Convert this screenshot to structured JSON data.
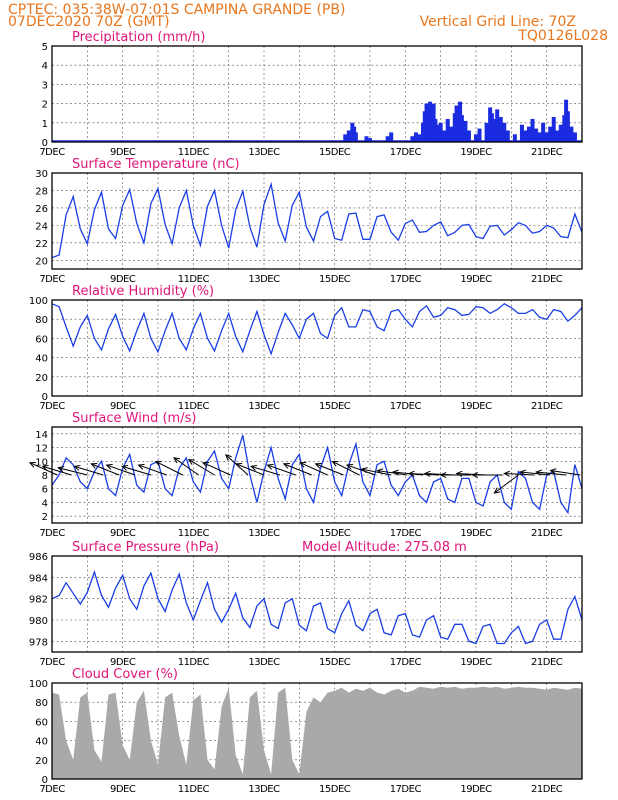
{
  "header": {
    "line1": "CPTEC:   035:38W-07:01S   CAMPINA GRANDE (PB)",
    "line2_left": "07DEC2020 70Z (GMT)",
    "line2_right": "Vertical Grid Line: 70Z",
    "line3_right": "TQ0126L028"
  },
  "colors": {
    "header": "#e8761e",
    "title": "#e0157a",
    "series": "#1a3ee6",
    "cloud": "#a9a9a9",
    "precip": "#1a2be0"
  },
  "x_ticks": [
    "7DEC",
    "9DEC",
    "11DEC",
    "13DEC",
    "15DEC",
    "17DEC",
    "19DEC",
    "21DEC"
  ],
  "chart_data": [
    {
      "id": "precip",
      "type": "bar",
      "title": "Precipitation (mm/h)",
      "ylim": [
        0,
        5
      ],
      "yticks": [
        0,
        1,
        2,
        3,
        4,
        5
      ],
      "x_range_days": [
        7,
        22
      ],
      "events": [
        {
          "day": 15.3,
          "value": 0.4
        },
        {
          "day": 15.4,
          "value": 0.6
        },
        {
          "day": 15.5,
          "value": 1.0
        },
        {
          "day": 15.55,
          "value": 0.8
        },
        {
          "day": 15.6,
          "value": 0.5
        },
        {
          "day": 15.9,
          "value": 0.3
        },
        {
          "day": 16.0,
          "value": 0.2
        },
        {
          "day": 16.5,
          "value": 0.3
        },
        {
          "day": 16.6,
          "value": 0.5
        },
        {
          "day": 17.2,
          "value": 0.3
        },
        {
          "day": 17.3,
          "value": 0.5
        },
        {
          "day": 17.4,
          "value": 0.4
        },
        {
          "day": 17.5,
          "value": 1.0
        },
        {
          "day": 17.55,
          "value": 1.6
        },
        {
          "day": 17.6,
          "value": 2.0
        },
        {
          "day": 17.65,
          "value": 1.8
        },
        {
          "day": 17.7,
          "value": 2.1
        },
        {
          "day": 17.75,
          "value": 1.5
        },
        {
          "day": 17.8,
          "value": 2.0
        },
        {
          "day": 17.85,
          "value": 1.2
        },
        {
          "day": 17.9,
          "value": 0.9
        },
        {
          "day": 18.0,
          "value": 1.0
        },
        {
          "day": 18.1,
          "value": 0.6
        },
        {
          "day": 18.2,
          "value": 1.2
        },
        {
          "day": 18.3,
          "value": 0.8
        },
        {
          "day": 18.4,
          "value": 1.5
        },
        {
          "day": 18.45,
          "value": 1.9
        },
        {
          "day": 18.5,
          "value": 1.6
        },
        {
          "day": 18.55,
          "value": 2.1
        },
        {
          "day": 18.6,
          "value": 1.4
        },
        {
          "day": 18.7,
          "value": 1.1
        },
        {
          "day": 18.8,
          "value": 0.6
        },
        {
          "day": 19.0,
          "value": 0.4
        },
        {
          "day": 19.1,
          "value": 0.7
        },
        {
          "day": 19.3,
          "value": 1.0
        },
        {
          "day": 19.4,
          "value": 1.8
        },
        {
          "day": 19.45,
          "value": 1.5
        },
        {
          "day": 19.5,
          "value": 1.2
        },
        {
          "day": 19.6,
          "value": 1.7
        },
        {
          "day": 19.7,
          "value": 1.3
        },
        {
          "day": 19.8,
          "value": 1.0
        },
        {
          "day": 19.9,
          "value": 0.6
        },
        {
          "day": 20.1,
          "value": 0.4
        },
        {
          "day": 20.3,
          "value": 0.9
        },
        {
          "day": 20.4,
          "value": 0.6
        },
        {
          "day": 20.5,
          "value": 0.8
        },
        {
          "day": 20.6,
          "value": 1.2
        },
        {
          "day": 20.7,
          "value": 0.7
        },
        {
          "day": 20.8,
          "value": 0.5
        },
        {
          "day": 20.9,
          "value": 1.0
        },
        {
          "day": 21.0,
          "value": 0.5
        },
        {
          "day": 21.1,
          "value": 0.8
        },
        {
          "day": 21.2,
          "value": 1.3
        },
        {
          "day": 21.3,
          "value": 0.6
        },
        {
          "day": 21.4,
          "value": 0.9
        },
        {
          "day": 21.5,
          "value": 1.4
        },
        {
          "day": 21.55,
          "value": 2.2
        },
        {
          "day": 21.6,
          "value": 1.6
        },
        {
          "day": 21.7,
          "value": 0.8
        },
        {
          "day": 21.8,
          "value": 0.5
        }
      ]
    },
    {
      "id": "temp",
      "type": "line",
      "title": "Surface Temperature (nC)",
      "ylim": [
        19,
        30
      ],
      "yticks": [
        20,
        22,
        24,
        26,
        28,
        30
      ],
      "x_range_days": [
        7,
        22
      ],
      "x_days": [
        7.0,
        7.2,
        7.4,
        7.6,
        7.8,
        8.0,
        8.2,
        8.4,
        8.6,
        8.8,
        9.0,
        9.2,
        9.4,
        9.6,
        9.8,
        10.0,
        10.2,
        10.4,
        10.6,
        10.8,
        11.0,
        11.2,
        11.4,
        11.6,
        11.8,
        12.0,
        12.2,
        12.4,
        12.6,
        12.8,
        13.0,
        13.2,
        13.4,
        13.6,
        13.8,
        14.0,
        14.2,
        14.4,
        14.6,
        14.8,
        15.0,
        15.2,
        15.4,
        15.6,
        15.8,
        16.0,
        16.2,
        16.4,
        16.6,
        16.8,
        17.0,
        17.2,
        17.4,
        17.6,
        17.8,
        18.0,
        18.2,
        18.4,
        18.6,
        18.8,
        19.0,
        19.2,
        19.4,
        19.6,
        19.8,
        20.0,
        20.2,
        20.4,
        20.6,
        20.8,
        21.0,
        21.2,
        21.4,
        21.6,
        21.8,
        22.0
      ],
      "values": [
        20.3,
        20.6,
        25.2,
        27.3,
        23.6,
        21.9,
        25.8,
        27.8,
        23.6,
        22.5,
        26.3,
        28.1,
        24.2,
        22.0,
        26.5,
        28.2,
        24.1,
        21.9,
        26.0,
        28.0,
        24.0,
        21.7,
        26.2,
        28.0,
        24.0,
        21.4,
        25.8,
        27.9,
        23.8,
        21.5,
        26.4,
        28.7,
        24.3,
        22.2,
        26.3,
        27.8,
        23.8,
        22.2,
        25.0,
        25.6,
        22.5,
        22.3,
        25.3,
        25.4,
        22.4,
        22.4,
        25.0,
        25.2,
        23.2,
        22.3,
        24.2,
        24.6,
        23.2,
        23.3,
        24.0,
        24.4,
        22.8,
        23.2,
        24.0,
        24.1,
        22.7,
        22.5,
        23.9,
        24.0,
        22.9,
        23.5,
        24.3,
        24.0,
        23.1,
        23.3,
        24.0,
        23.7,
        22.7,
        22.6,
        25.3,
        23.2
      ]
    },
    {
      "id": "rh",
      "type": "line",
      "title": "Relative Humidity (%)",
      "ylim": [
        0,
        100
      ],
      "yticks": [
        0,
        20,
        40,
        60,
        80,
        100
      ],
      "x_range_days": [
        7,
        22
      ],
      "x_days": [
        7.0,
        7.2,
        7.4,
        7.6,
        7.8,
        8.0,
        8.2,
        8.4,
        8.6,
        8.8,
        9.0,
        9.2,
        9.4,
        9.6,
        9.8,
        10.0,
        10.2,
        10.4,
        10.6,
        10.8,
        11.0,
        11.2,
        11.4,
        11.6,
        11.8,
        12.0,
        12.2,
        12.4,
        12.6,
        12.8,
        13.0,
        13.2,
        13.4,
        13.6,
        13.8,
        14.0,
        14.2,
        14.4,
        14.6,
        14.8,
        15.0,
        15.2,
        15.4,
        15.6,
        15.8,
        16.0,
        16.2,
        16.4,
        16.6,
        16.8,
        17.0,
        17.2,
        17.4,
        17.6,
        17.8,
        18.0,
        18.2,
        18.4,
        18.6,
        18.8,
        19.0,
        19.2,
        19.4,
        19.6,
        19.8,
        20.0,
        20.2,
        20.4,
        20.6,
        20.8,
        21.0,
        21.2,
        21.4,
        21.6,
        21.8,
        22.0
      ],
      "values": [
        96,
        93,
        72,
        52,
        72,
        84,
        60,
        48,
        70,
        85,
        62,
        47,
        68,
        86,
        60,
        46,
        68,
        86,
        60,
        48,
        70,
        86,
        60,
        47,
        68,
        86,
        62,
        46,
        68,
        88,
        64,
        44,
        66,
        86,
        74,
        60,
        80,
        86,
        65,
        60,
        84,
        92,
        72,
        72,
        90,
        88,
        72,
        68,
        88,
        90,
        80,
        72,
        88,
        94,
        82,
        84,
        92,
        90,
        84,
        85,
        93,
        92,
        86,
        90,
        96,
        92,
        86,
        86,
        90,
        82,
        80,
        90,
        88,
        78,
        84,
        92
      ]
    },
    {
      "id": "wind",
      "type": "line",
      "title": "Surface Wind (m/s)",
      "ylim": [
        1,
        15
      ],
      "yticks": [
        2,
        4,
        6,
        8,
        10,
        12,
        14
      ],
      "x_range_days": [
        7,
        22
      ],
      "x_days": [
        7.0,
        7.2,
        7.4,
        7.6,
        7.8,
        8.0,
        8.2,
        8.4,
        8.6,
        8.8,
        9.0,
        9.2,
        9.4,
        9.6,
        9.8,
        10.0,
        10.2,
        10.4,
        10.6,
        10.8,
        11.0,
        11.2,
        11.4,
        11.6,
        11.8,
        12.0,
        12.2,
        12.4,
        12.6,
        12.8,
        13.0,
        13.2,
        13.4,
        13.6,
        13.8,
        14.0,
        14.2,
        14.4,
        14.6,
        14.8,
        15.0,
        15.2,
        15.4,
        15.6,
        15.8,
        16.0,
        16.2,
        16.4,
        16.6,
        16.8,
        17.0,
        17.2,
        17.4,
        17.6,
        17.8,
        18.0,
        18.2,
        18.4,
        18.6,
        18.8,
        19.0,
        19.2,
        19.4,
        19.6,
        19.8,
        20.0,
        20.2,
        20.4,
        20.6,
        20.8,
        21.0,
        21.2,
        21.4,
        21.6,
        21.8,
        22.0
      ],
      "values": [
        6.5,
        8.0,
        10.5,
        9.5,
        7.0,
        6.0,
        8.5,
        10.0,
        6.0,
        5.0,
        9.0,
        11.0,
        6.5,
        5.5,
        9.5,
        10.0,
        6.0,
        5.0,
        9.0,
        10.5,
        7.0,
        5.5,
        10.0,
        11.5,
        7.5,
        6.0,
        10.5,
        13.8,
        8.0,
        4.0,
        8.5,
        12.0,
        7.5,
        4.5,
        9.5,
        11.0,
        6.0,
        4.0,
        9.0,
        12.0,
        7.0,
        5.0,
        9.5,
        12.5,
        7.0,
        5.0,
        9.5,
        10.0,
        6.5,
        5.0,
        7.0,
        8.0,
        5.0,
        4.0,
        7.0,
        7.5,
        4.5,
        4.0,
        7.5,
        7.5,
        4.0,
        3.5,
        7.0,
        8.0,
        4.0,
        3.0,
        8.5,
        7.5,
        4.0,
        3.0,
        8.0,
        8.5,
        4.0,
        2.5,
        9.5,
        6.0
      ],
      "vectors": [
        {
          "day": 7.15,
          "u": -1.0,
          "v": 0.45
        },
        {
          "day": 7.55,
          "u": -1.0,
          "v": 0.3
        },
        {
          "day": 8.0,
          "u": -1.0,
          "v": 0.25
        },
        {
          "day": 8.45,
          "u": -1.0,
          "v": 0.3
        },
        {
          "day": 8.9,
          "u": -1.0,
          "v": 0.4
        },
        {
          "day": 9.35,
          "u": -1.0,
          "v": 0.35
        },
        {
          "day": 9.8,
          "u": -1.0,
          "v": 0.3
        },
        {
          "day": 10.25,
          "u": -1.0,
          "v": 0.35
        },
        {
          "day": 10.7,
          "u": -1.0,
          "v": 0.5
        },
        {
          "day": 11.15,
          "u": -1.0,
          "v": 0.7
        },
        {
          "day": 11.6,
          "u": -1.0,
          "v": 0.6
        },
        {
          "day": 12.05,
          "u": -1.0,
          "v": 0.45
        },
        {
          "day": 12.55,
          "u": -1.0,
          "v": 0.9
        },
        {
          "day": 13.0,
          "u": -1.0,
          "v": 0.4
        },
        {
          "day": 13.45,
          "u": -1.0,
          "v": 0.3
        },
        {
          "day": 13.9,
          "u": -1.0,
          "v": 0.35
        },
        {
          "day": 14.35,
          "u": -1.0,
          "v": 0.4
        },
        {
          "day": 14.8,
          "u": -1.0,
          "v": 0.45
        },
        {
          "day": 15.25,
          "u": -1.0,
          "v": 0.4
        },
        {
          "day": 15.7,
          "u": -1.0,
          "v": 0.5
        },
        {
          "day": 16.15,
          "u": -1.0,
          "v": 0.35
        },
        {
          "day": 16.6,
          "u": -1.0,
          "v": 0.2
        },
        {
          "day": 17.05,
          "u": -1.0,
          "v": 0.15
        },
        {
          "day": 17.5,
          "u": -1.0,
          "v": 0.1
        },
        {
          "day": 17.95,
          "u": -1.0,
          "v": 0.05
        },
        {
          "day": 18.4,
          "u": -1.0,
          "v": 0.05
        },
        {
          "day": 18.85,
          "u": -1.0,
          "v": 0.0
        },
        {
          "day": 19.3,
          "u": -1.0,
          "v": 0.05
        },
        {
          "day": 19.75,
          "u": -1.0,
          "v": 0.0
        },
        {
          "day": 20.2,
          "u": -0.8,
          "v": -0.6
        },
        {
          "day": 20.65,
          "u": -1.0,
          "v": 0.05
        },
        {
          "day": 21.1,
          "u": -1.0,
          "v": 0.1
        },
        {
          "day": 21.55,
          "u": -1.0,
          "v": 0.1
        },
        {
          "day": 21.95,
          "u": -1.0,
          "v": 0.15
        }
      ]
    },
    {
      "id": "pres",
      "type": "line",
      "title": "Surface Pressure (hPa)",
      "annotation": "Model Altitude: 275.08 m",
      "ylim": [
        977,
        986
      ],
      "yticks": [
        978,
        980,
        982,
        984,
        986
      ],
      "x_range_days": [
        7,
        22
      ],
      "x_days": [
        7.0,
        7.2,
        7.4,
        7.6,
        7.8,
        8.0,
        8.2,
        8.4,
        8.6,
        8.8,
        9.0,
        9.2,
        9.4,
        9.6,
        9.8,
        10.0,
        10.2,
        10.4,
        10.6,
        10.8,
        11.0,
        11.2,
        11.4,
        11.6,
        11.8,
        12.0,
        12.2,
        12.4,
        12.6,
        12.8,
        13.0,
        13.2,
        13.4,
        13.6,
        13.8,
        14.0,
        14.2,
        14.4,
        14.6,
        14.8,
        15.0,
        15.2,
        15.4,
        15.6,
        15.8,
        16.0,
        16.2,
        16.4,
        16.6,
        16.8,
        17.0,
        17.2,
        17.4,
        17.6,
        17.8,
        18.0,
        18.2,
        18.4,
        18.6,
        18.8,
        19.0,
        19.2,
        19.4,
        19.6,
        19.8,
        20.0,
        20.2,
        20.4,
        20.6,
        20.8,
        21.0,
        21.2,
        21.4,
        21.6,
        21.8,
        22.0
      ],
      "values": [
        982.0,
        982.3,
        983.5,
        982.5,
        981.5,
        982.6,
        984.5,
        982.3,
        981.2,
        983.0,
        984.2,
        982.0,
        981.0,
        983.2,
        984.4,
        982.0,
        980.8,
        982.8,
        984.3,
        981.6,
        980.0,
        981.8,
        983.5,
        981.0,
        979.8,
        981.0,
        982.5,
        980.2,
        979.3,
        981.3,
        982.0,
        979.6,
        979.2,
        981.6,
        982.0,
        979.5,
        979.0,
        981.3,
        981.6,
        979.2,
        978.8,
        980.6,
        981.8,
        979.5,
        979.0,
        980.6,
        981.0,
        978.8,
        978.6,
        980.4,
        980.6,
        978.6,
        978.4,
        980.0,
        980.4,
        978.4,
        978.2,
        979.6,
        979.6,
        978.0,
        977.8,
        979.4,
        979.6,
        977.8,
        977.8,
        978.8,
        979.4,
        977.8,
        978.0,
        979.6,
        980.0,
        978.2,
        978.2,
        981.0,
        982.2,
        980.0
      ]
    },
    {
      "id": "cloud",
      "type": "area",
      "title": "Cloud Cover (%)",
      "ylim": [
        0,
        100
      ],
      "yticks": [
        0,
        20,
        40,
        60,
        80,
        100
      ],
      "x_range_days": [
        7,
        22
      ],
      "x_days": [
        7.0,
        7.2,
        7.4,
        7.6,
        7.8,
        8.0,
        8.2,
        8.4,
        8.6,
        8.8,
        9.0,
        9.2,
        9.4,
        9.6,
        9.8,
        10.0,
        10.2,
        10.4,
        10.6,
        10.8,
        11.0,
        11.2,
        11.4,
        11.6,
        11.8,
        12.0,
        12.2,
        12.4,
        12.6,
        12.8,
        13.0,
        13.2,
        13.4,
        13.6,
        13.8,
        14.0,
        14.2,
        14.4,
        14.6,
        14.8,
        15.0,
        15.2,
        15.4,
        15.6,
        15.8,
        16.0,
        16.2,
        16.4,
        16.6,
        16.8,
        17.0,
        17.2,
        17.4,
        17.6,
        17.8,
        18.0,
        18.2,
        18.4,
        18.6,
        18.8,
        19.0,
        19.2,
        19.4,
        19.6,
        19.8,
        20.0,
        20.2,
        20.4,
        20.6,
        20.8,
        21.0,
        21.2,
        21.4,
        21.6,
        21.8,
        22.0
      ],
      "values": [
        90,
        88,
        40,
        20,
        85,
        90,
        30,
        18,
        88,
        90,
        35,
        20,
        80,
        92,
        40,
        15,
        85,
        90,
        45,
        15,
        82,
        88,
        20,
        10,
        75,
        95,
        25,
        5,
        85,
        92,
        30,
        5,
        90,
        95,
        20,
        5,
        70,
        85,
        80,
        90,
        92,
        95,
        90,
        94,
        92,
        95,
        90,
        88,
        92,
        94,
        90,
        92,
        96,
        95,
        94,
        96,
        95,
        96,
        94,
        95,
        95,
        96,
        95,
        96,
        94,
        95,
        96,
        95,
        95,
        94,
        93,
        95,
        94,
        93,
        95,
        94
      ]
    }
  ]
}
